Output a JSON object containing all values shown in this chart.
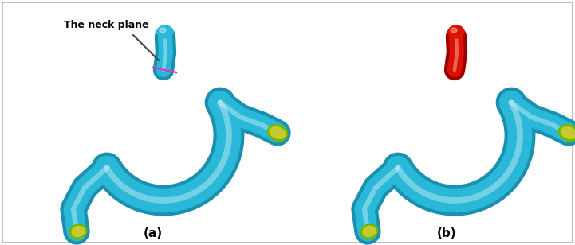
{
  "figure_width": 7.21,
  "figure_height": 3.08,
  "dpi": 100,
  "background_color": "#ffffff",
  "border_color": "#b0b0b0",
  "label_a": "(a)",
  "label_b": "(b)",
  "label_fontsize": 11,
  "label_fontweight": "bold",
  "annotation_text": "The neck plane",
  "annotation_fontsize": 9,
  "annotation_fontweight": "bold",
  "annotation_color": "#000000",
  "vessel_color_blue": "#2ab8d8",
  "vessel_shadow_blue": "#1a90b0",
  "aneurysm_color": "#dd1100",
  "cap_color_green": "#70b800",
  "cap_color_yellow": "#c8c830",
  "neck_line_color": "#cc44cc",
  "arrow_color": "#444444",
  "lw_main": 18,
  "lw_aneurysm": 10
}
